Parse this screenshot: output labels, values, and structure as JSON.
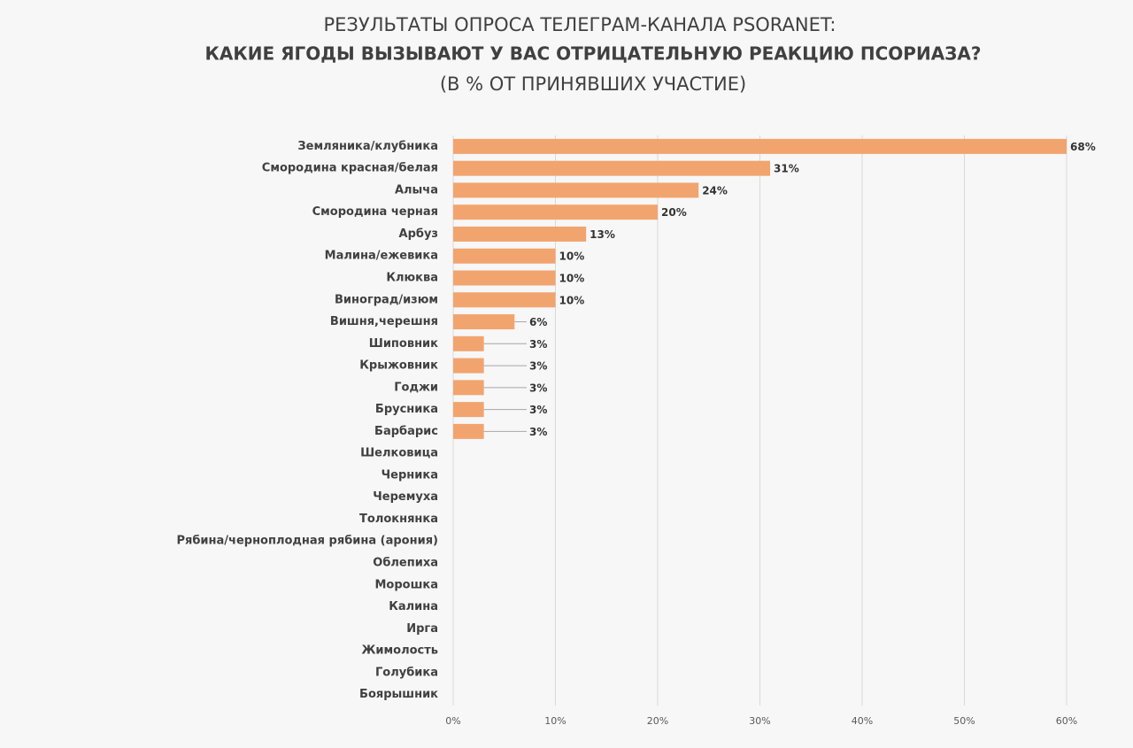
{
  "chart_data": {
    "type": "bar",
    "orientation": "horizontal",
    "title": "РЕЗУЛЬТАТЫ ОПРОСА ТЕЛЕГРАМ-КАНАЛА PSORANET:",
    "subtitle": "КАКИЕ ЯГОДЫ ВЫЗЫВАЮТ У ВАС ОТРИЦАТЕЛЬНУЮ РЕАКЦИЮ ПСОРИАЗА?",
    "caption": "(В % ОТ ПРИНЯВШИХ УЧАСТИЕ)",
    "categories": [
      "Земляника/клубника",
      "Смородина красная/белая",
      "Алыча",
      "Смородина черная",
      "Арбуз",
      "Малина/ежевика",
      "Клюква",
      "Виноград/изюм",
      "Вишня,черешня",
      "Шиповник",
      "Крыжовник",
      "Годжи",
      "Брусника",
      "Барбарис",
      "Шелковица",
      "Черника",
      "Черемуха",
      "Толокнянка",
      "Рябина/черноплодная рябина (арония)",
      "Облепиха",
      "Морошка",
      "Калина",
      "Ирга",
      "Жимолость",
      "Голубика",
      "Боярышник"
    ],
    "values": [
      68,
      31,
      24,
      20,
      13,
      10,
      10,
      10,
      6,
      3,
      3,
      3,
      3,
      3,
      0,
      0,
      0,
      0,
      0,
      0,
      0,
      0,
      0,
      0,
      0,
      0
    ],
    "value_labels": [
      "68%",
      "31%",
      "24%",
      "20%",
      "13%",
      "10%",
      "10%",
      "10%",
      "6%",
      "3%",
      "3%",
      "3%",
      "3%",
      "3%",
      null,
      null,
      null,
      null,
      null,
      null,
      null,
      null,
      null,
      null,
      null,
      null
    ],
    "color": "#f2a46e",
    "xlim": [
      0,
      60
    ],
    "xticks": [
      {
        "value": 0,
        "label": "0%"
      },
      {
        "value": 10,
        "label": "10%"
      },
      {
        "value": 20,
        "label": "20%"
      },
      {
        "value": 30,
        "label": "30%"
      },
      {
        "value": 40,
        "label": "40%"
      },
      {
        "value": 50,
        "label": "50%"
      },
      {
        "value": 60,
        "label": "60%"
      }
    ],
    "grid": true
  }
}
